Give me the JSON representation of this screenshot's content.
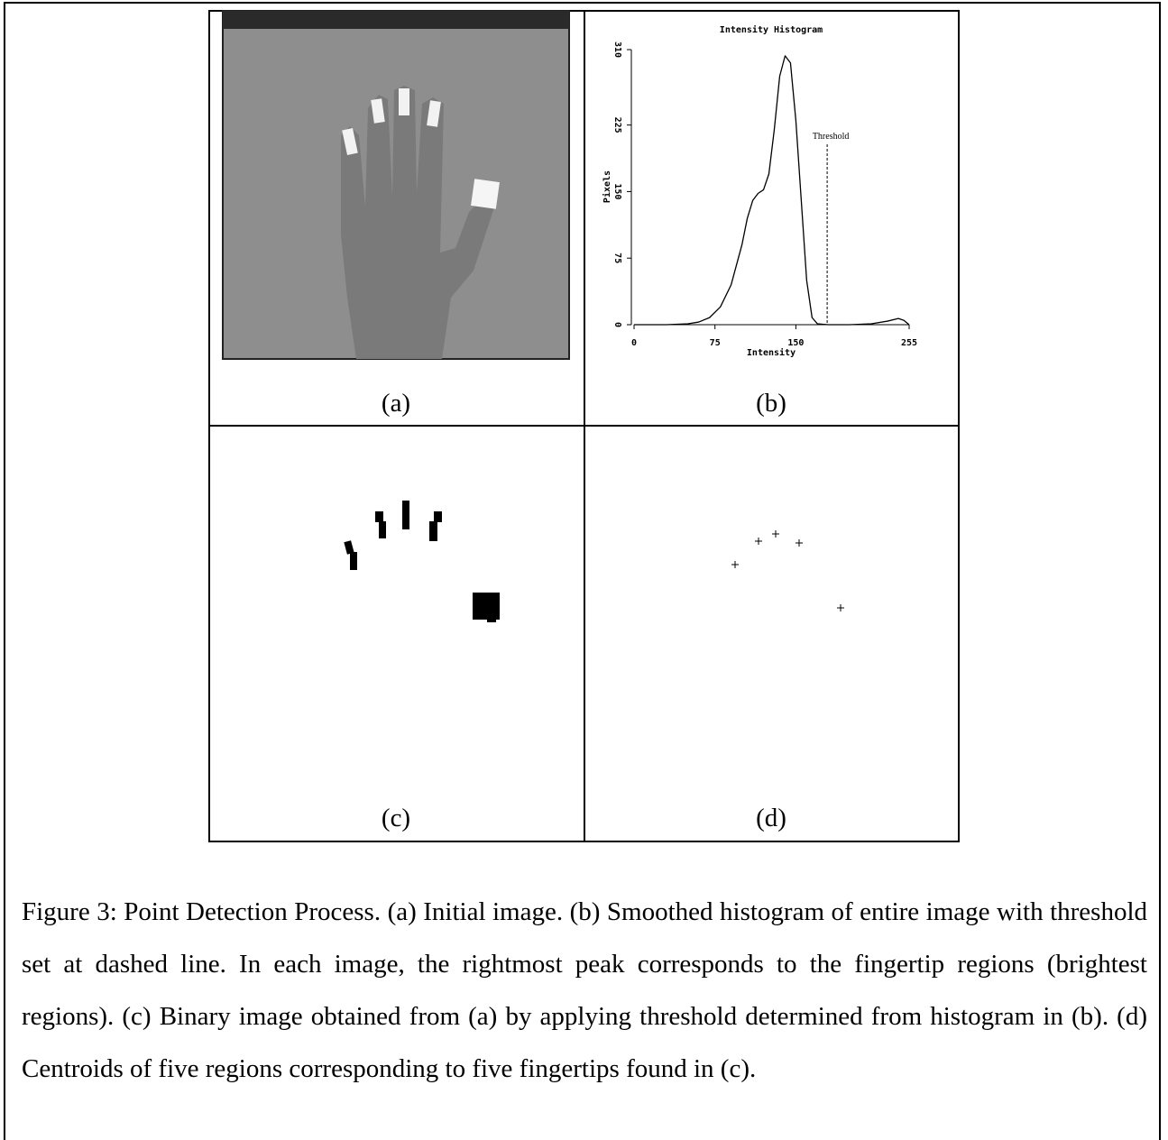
{
  "chart_data": {
    "type": "line",
    "title": "Intensity Histogram",
    "x_label": "Intensity",
    "y_label": "Pixels",
    "x": [
      0,
      30,
      50,
      60,
      70,
      80,
      90,
      100,
      105,
      110,
      115,
      120,
      125,
      130,
      135,
      140,
      145,
      150,
      155,
      160,
      165,
      170,
      180,
      200,
      220,
      235,
      245,
      250,
      255
    ],
    "values": [
      0,
      0,
      1,
      3,
      8,
      20,
      45,
      90,
      120,
      140,
      148,
      152,
      170,
      220,
      280,
      303,
      295,
      230,
      140,
      50,
      8,
      1,
      0,
      0,
      1,
      4,
      7,
      5,
      0
    ],
    "color": "#000000",
    "xlim": [
      0,
      255
    ],
    "ylim": [
      0,
      310
    ],
    "xticks": [
      0,
      75,
      150,
      255
    ],
    "yticks": [
      0,
      75,
      150,
      225,
      310
    ],
    "annotations": [
      {
        "text": "Threshold",
        "x": 179
      }
    ]
  },
  "panel_labels": [
    "(a)",
    "(b)",
    "(c)",
    "(d)"
  ],
  "caption": "Figure 3: Point Detection Process. (a) Initial image. (b) Smoothed histogram of entire image with threshold set at dashed line. In each image, the rightmost peak corresponds to the fingertip regions (brightest regions). (c) Binary image obtained from (a) by applying threshold determined from histogram in (b). (d) Centroids of five regions corresponding to five fingertips found in (c)."
}
